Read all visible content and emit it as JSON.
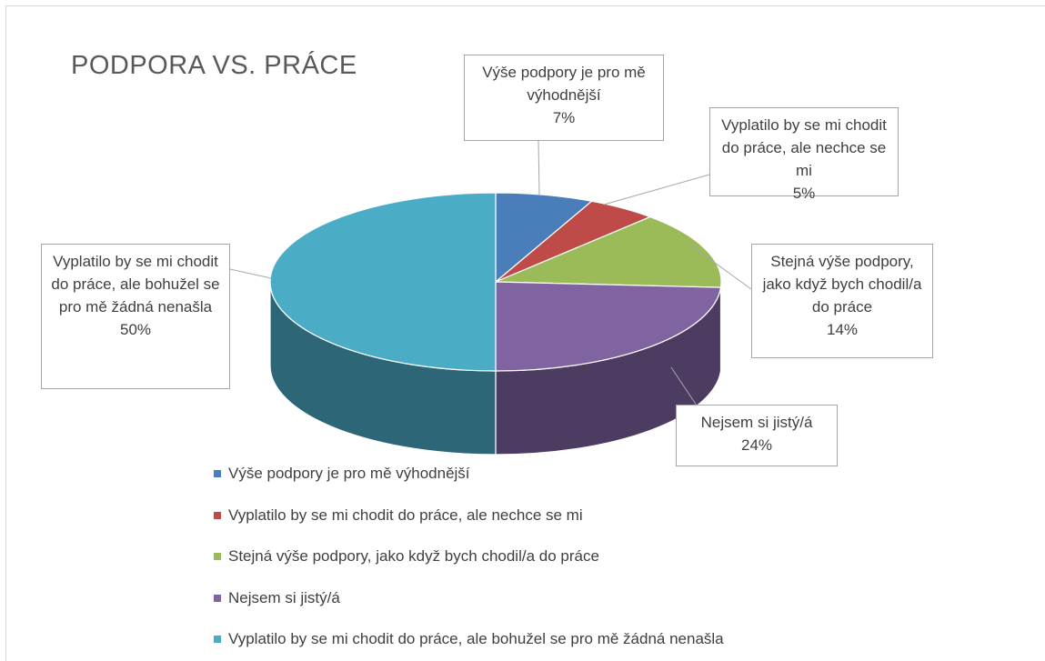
{
  "chart_data": {
    "type": "pie3d",
    "title": "PODPORA VS. PRÁCE",
    "categories": [
      "Výše podpory je pro mě výhodnější",
      "Vyplatilo by se mi chodit do práce, ale nechce se mi",
      "Stejná výše podpory, jako když bych chodil/a do práce",
      "Nejsem si jistý/á",
      "Vyplatilo by se mi chodit do práce, ale bohužel se pro mě žádná nenašla"
    ],
    "values": [
      7,
      5,
      14,
      24,
      50
    ],
    "value_labels": [
      "7%",
      "5%",
      "14%",
      "24%",
      "50%"
    ],
    "colors": [
      "#4a7ebb",
      "#be4b48",
      "#9bbb59",
      "#8064a2",
      "#4bacc6"
    ],
    "legend": "bottom"
  }
}
